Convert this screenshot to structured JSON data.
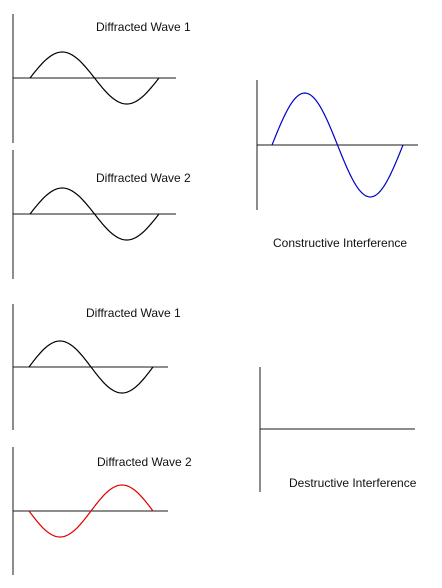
{
  "constructive": {
    "wave1": {
      "label": "Diffracted Wave 1",
      "color": "#000000",
      "phase": "normal"
    },
    "wave2": {
      "label": "Diffracted Wave 2",
      "color": "#000000",
      "phase": "normal"
    },
    "result": {
      "label": "Constructive Interference",
      "color": "#0000cc",
      "amplitude_ratio": 2
    }
  },
  "destructive": {
    "wave1": {
      "label": "Diffracted Wave 1",
      "color": "#000000",
      "phase": "normal"
    },
    "wave2": {
      "label": "Diffracted Wave 2",
      "color": "#dd0000",
      "phase": "inverted"
    },
    "result": {
      "label": "Destructive Interference",
      "color": "#000000",
      "amplitude_ratio": 0
    }
  }
}
